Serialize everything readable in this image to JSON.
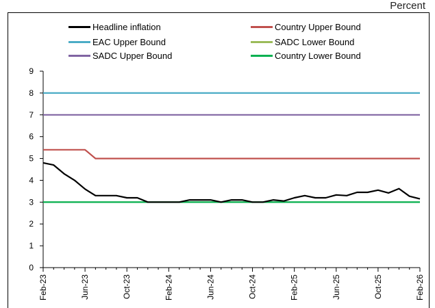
{
  "unit_label": "Percent",
  "chart_data": {
    "type": "line",
    "ylim": [
      0,
      9
    ],
    "yticks": [
      0,
      1,
      2,
      3,
      4,
      5,
      6,
      7,
      8,
      9
    ],
    "xticks": [
      "Feb-23",
      "Jun-23",
      "Oct-23",
      "Feb-24",
      "Jun-24",
      "Oct-24",
      "Feb-25",
      "Jun-25",
      "Oct-25",
      "Feb-26"
    ],
    "x": [
      "Feb-23",
      "Mar-23",
      "Apr-23",
      "May-23",
      "Jun-23",
      "Jul-23",
      "Aug-23",
      "Sep-23",
      "Oct-23",
      "Nov-23",
      "Dec-23",
      "Jan-24",
      "Feb-24",
      "Mar-24",
      "Apr-24",
      "May-24",
      "Jun-24",
      "Jul-24",
      "Aug-24",
      "Sep-24",
      "Oct-24",
      "Nov-24",
      "Dec-24",
      "Jan-25",
      "Feb-25",
      "Mar-25",
      "Apr-25",
      "May-25",
      "Jun-25",
      "Jul-25",
      "Aug-25",
      "Sep-25",
      "Oct-25",
      "Nov-25",
      "Dec-25",
      "Jan-26",
      "Feb-26"
    ],
    "legend": [
      {
        "name": "Headline inflation",
        "color": "#000000"
      },
      {
        "name": "Country Upper Bound",
        "color": "#c0504d"
      },
      {
        "name": "EAC Upper Bound",
        "color": "#4bacc6"
      },
      {
        "name": "SADC Lower Bound",
        "color": "#9bbb59"
      },
      {
        "name": "SADC Upper Bound",
        "color": "#8064a2"
      },
      {
        "name": "Country Lower Bound",
        "color": "#00b050"
      }
    ],
    "series": [
      {
        "name": "EAC Upper Bound",
        "color": "#4bacc6",
        "values": [
          8,
          8,
          8,
          8,
          8,
          8,
          8,
          8,
          8,
          8,
          8,
          8,
          8,
          8,
          8,
          8,
          8,
          8,
          8,
          8,
          8,
          8,
          8,
          8,
          8,
          8,
          8,
          8,
          8,
          8,
          8,
          8,
          8,
          8,
          8,
          8,
          8
        ]
      },
      {
        "name": "SADC Upper Bound",
        "color": "#8064a2",
        "values": [
          7,
          7,
          7,
          7,
          7,
          7,
          7,
          7,
          7,
          7,
          7,
          7,
          7,
          7,
          7,
          7,
          7,
          7,
          7,
          7,
          7,
          7,
          7,
          7,
          7,
          7,
          7,
          7,
          7,
          7,
          7,
          7,
          7,
          7,
          7,
          7,
          7
        ]
      },
      {
        "name": "Country Upper Bound",
        "color": "#c0504d",
        "values": [
          5.4,
          5.4,
          5.4,
          5.4,
          5.4,
          5,
          5,
          5,
          5,
          5,
          5,
          5,
          5,
          5,
          5,
          5,
          5,
          5,
          5,
          5,
          5,
          5,
          5,
          5,
          5,
          5,
          5,
          5,
          5,
          5,
          5,
          5,
          5,
          5,
          5,
          5,
          5
        ]
      },
      {
        "name": "SADC Lower Bound",
        "color": "#9bbb59",
        "values": [
          3,
          3,
          3,
          3,
          3,
          3,
          3,
          3,
          3,
          3,
          3,
          3,
          3,
          3,
          3,
          3,
          3,
          3,
          3,
          3,
          3,
          3,
          3,
          3,
          3,
          3,
          3,
          3,
          3,
          3,
          3,
          3,
          3,
          3,
          3,
          3,
          3
        ]
      },
      {
        "name": "Country Lower Bound",
        "color": "#00b050",
        "values": [
          3,
          3,
          3,
          3,
          3,
          3,
          3,
          3,
          3,
          3,
          3,
          3,
          3,
          3,
          3,
          3,
          3,
          3,
          3,
          3,
          3,
          3,
          3,
          3,
          3,
          3,
          3,
          3,
          3,
          3,
          3,
          3,
          3,
          3,
          3,
          3,
          3
        ]
      },
      {
        "name": "Headline inflation",
        "color": "#000000",
        "values": [
          4.8,
          4.7,
          4.3,
          4.0,
          3.6,
          3.3,
          3.3,
          3.3,
          3.2,
          3.2,
          3.0,
          3.0,
          3.0,
          3.0,
          3.1,
          3.1,
          3.1,
          3.0,
          3.1,
          3.1,
          3.0,
          3.0,
          3.1,
          3.05,
          3.2,
          3.3,
          3.2,
          3.2,
          3.33,
          3.3,
          3.45,
          3.45,
          3.55,
          3.42,
          3.62,
          3.27,
          3.15
        ]
      }
    ]
  }
}
